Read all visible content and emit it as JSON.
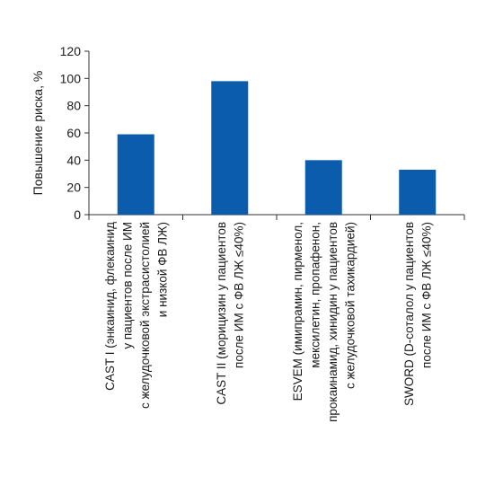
{
  "chart_data": {
    "type": "bar",
    "title": "",
    "xlabel": "",
    "ylabel": "Повышение риска, %",
    "ylim": [
      0,
      120
    ],
    "yticks": [
      0,
      20,
      40,
      60,
      80,
      100,
      120
    ],
    "grid": false,
    "bar_color": "#0b5cad",
    "categories": [
      [
        "CAST I (энкаинид, флекаинид",
        "у пациентов после ИМ",
        "с желудочковой экстрасистолией",
        "и низкой ФВ ЛЖ)"
      ],
      [
        "CAST II (морицизин у пациентов",
        "после ИМ с ФВ ЛЖ ≤40%)"
      ],
      [
        "ESVEM (имипрамин, пирменол,",
        "мексилетин, пропафенон,",
        "прокаинамид, хинидин у пациентов",
        "с желудочковой тахикардией)"
      ],
      [
        "SWORD (D-соталол у пациентов",
        "после ИМ с ФВ ЛЖ ≤40%)"
      ]
    ],
    "values": [
      59,
      98,
      40,
      33
    ]
  }
}
